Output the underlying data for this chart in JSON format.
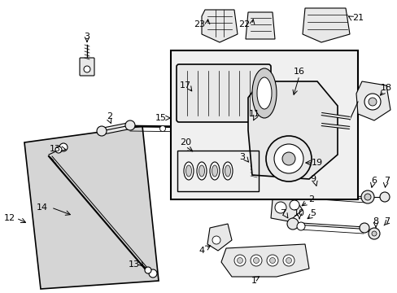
{
  "bg_color": "#ffffff",
  "fig_width": 4.89,
  "fig_height": 3.6,
  "dpi": 100,
  "line_color": "#000000",
  "text_color": "#000000",
  "fill_light": "#e8e8e8",
  "fill_mid": "#cccccc",
  "fill_dark": "#aaaaaa"
}
